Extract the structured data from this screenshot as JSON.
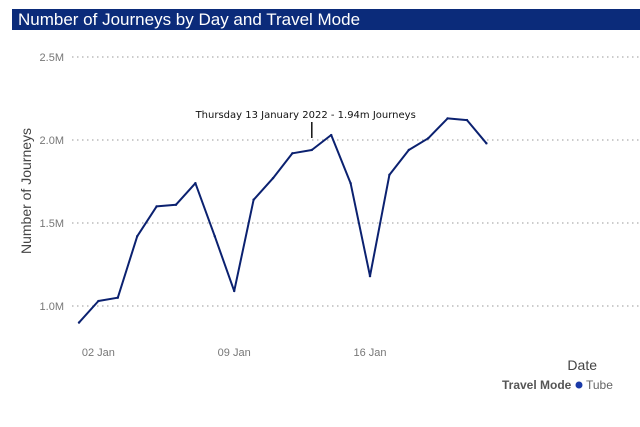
{
  "chart_data": {
    "type": "line",
    "title": "Number of Journeys by Day and Travel Mode",
    "xlabel": "Date",
    "ylabel": "Number of Journeys",
    "y_ticks": [
      {
        "value": 1.0,
        "label": "1.0M"
      },
      {
        "value": 1.5,
        "label": "1.5M"
      },
      {
        "value": 2.0,
        "label": "2.0M"
      },
      {
        "value": 2.5,
        "label": "2.5M"
      }
    ],
    "x_ticks": [
      {
        "day": 2,
        "label": "02 Jan"
      },
      {
        "day": 9,
        "label": "09 Jan"
      },
      {
        "day": 16,
        "label": "16 Jan"
      }
    ],
    "ylim": [
      0.9,
      2.5
    ],
    "xlim": [
      "2022-01-01",
      "2022-01-22"
    ],
    "grid": true,
    "legend": {
      "title": "Travel Mode",
      "placement": "bottom-right"
    },
    "series": [
      {
        "name": "Tube",
        "color": "#0b2170",
        "marker_color": "#1a3aa8",
        "points": [
          {
            "date": "2022-01-01",
            "value": 0.9
          },
          {
            "date": "2022-01-02",
            "value": 1.03
          },
          {
            "date": "2022-01-03",
            "value": 1.05
          },
          {
            "date": "2022-01-04",
            "value": 1.42
          },
          {
            "date": "2022-01-05",
            "value": 1.6
          },
          {
            "date": "2022-01-06",
            "value": 1.61
          },
          {
            "date": "2022-01-07",
            "value": 1.74
          },
          {
            "date": "2022-01-08",
            "value": 1.42
          },
          {
            "date": "2022-01-09",
            "value": 1.09
          },
          {
            "date": "2022-01-10",
            "value": 1.64
          },
          {
            "date": "2022-01-11",
            "value": 1.77
          },
          {
            "date": "2022-01-12",
            "value": 1.92
          },
          {
            "date": "2022-01-13",
            "value": 1.94
          },
          {
            "date": "2022-01-14",
            "value": 2.03
          },
          {
            "date": "2022-01-15",
            "value": 1.74
          },
          {
            "date": "2022-01-16",
            "value": 1.18
          },
          {
            "date": "2022-01-17",
            "value": 1.79
          },
          {
            "date": "2022-01-18",
            "value": 1.94
          },
          {
            "date": "2022-01-19",
            "value": 2.01
          },
          {
            "date": "2022-01-20",
            "value": 2.13
          },
          {
            "date": "2022-01-21",
            "value": 2.12
          },
          {
            "date": "2022-01-22",
            "value": 1.98
          }
        ]
      }
    ],
    "annotation": {
      "date": "2022-01-13",
      "value": 1.94,
      "text": "Thursday 13 January 2022 - 1.94m Journeys"
    }
  }
}
